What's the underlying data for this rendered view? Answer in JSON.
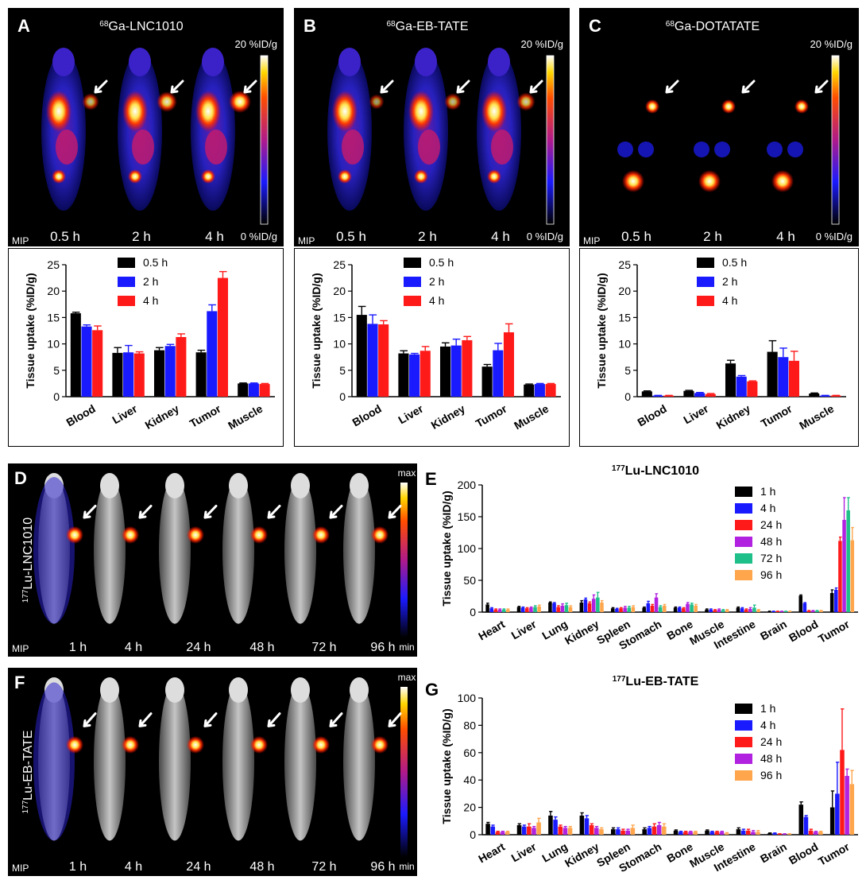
{
  "colors": {
    "t0_5h": "#000000",
    "t1h": "#000000",
    "t2h": "#1a1aff",
    "t4h": "#ff1a1a",
    "t24h": "#ff1a1a",
    "t48h": "#b021e0",
    "t72h": "#1fbf8a",
    "t96h": "#ffa64d",
    "t4h_blue": "#1a1aff"
  },
  "image_panels": [
    {
      "letter": "A",
      "probe_mass": "68",
      "probe_name": "Ga-LNC1010",
      "scale_top": "20 %ID/g",
      "scale_bottom": "0 %ID/g",
      "mip": "MIP",
      "times": [
        "0.5 h",
        "2 h",
        "4 h"
      ],
      "tumor_intensity": [
        0.45,
        0.8,
        1.0
      ]
    },
    {
      "letter": "B",
      "probe_mass": "68",
      "probe_name": "Ga-EB-TATE",
      "scale_top": "20 %ID/g",
      "scale_bottom": "0 %ID/g",
      "mip": "MIP",
      "times": [
        "0.5 h",
        "2 h",
        "4 h"
      ],
      "tumor_intensity": [
        0.25,
        0.45,
        0.6
      ]
    },
    {
      "letter": "C",
      "probe_mass": "68",
      "probe_name": "Ga-DOTATATE",
      "scale_top": "20 %ID/g",
      "scale_bottom": "0 %ID/g",
      "mip": "MIP",
      "times": [
        "0.5 h",
        "2 h",
        "4 h"
      ],
      "tumor_intensity": [
        0.5,
        0.5,
        0.5
      ]
    },
    {
      "letter": "D",
      "probe_mass": "177",
      "probe_name": "Lu-LNC1010",
      "scale_top": "max",
      "scale_bottom": "min",
      "mip": "MIP",
      "times": [
        "1 h",
        "4 h",
        "24 h",
        "48 h",
        "72 h",
        "96 h"
      ]
    },
    {
      "letter": "F",
      "probe_mass": "177",
      "probe_name": "Lu-EB-TATE",
      "scale_top": "max",
      "scale_bottom": "min",
      "mip": "MIP",
      "times": [
        "1 h",
        "4 h",
        "24 h",
        "48 h",
        "72 h",
        "96 h"
      ]
    }
  ],
  "chart_data": [
    {
      "panel": "A",
      "type": "bar",
      "categories": [
        "Blood",
        "Liver",
        "Kidney",
        "Tumor",
        "Muscle"
      ],
      "ylabel": "Tissue uptake (%ID/g)",
      "ylim": [
        0,
        25
      ],
      "yticks": [
        0,
        5,
        10,
        15,
        20,
        25
      ],
      "legend": "top-center",
      "series": [
        {
          "name": "0.5 h",
          "color": "#000000",
          "values": [
            15.8,
            8.3,
            8.8,
            8.4,
            2.5
          ],
          "errors": [
            0.2,
            1.0,
            0.5,
            0.4,
            0.1
          ]
        },
        {
          "name": "2 h",
          "color": "#1a1aff",
          "values": [
            13.3,
            8.4,
            9.6,
            16.2,
            2.5
          ],
          "errors": [
            0.3,
            1.3,
            0.3,
            1.2,
            0.1
          ]
        },
        {
          "name": "4 h",
          "color": "#ff1a1a",
          "values": [
            12.6,
            8.2,
            11.3,
            22.5,
            2.4
          ],
          "errors": [
            0.8,
            0.3,
            0.6,
            1.2,
            0.1
          ]
        }
      ]
    },
    {
      "panel": "B",
      "type": "bar",
      "categories": [
        "Blood",
        "Liver",
        "Kidney",
        "Tumor",
        "Muscle"
      ],
      "ylabel": "Tissue uptake (%ID/g)",
      "ylim": [
        0,
        25
      ],
      "yticks": [
        0,
        5,
        10,
        15,
        20,
        25
      ],
      "legend": "top-center",
      "series": [
        {
          "name": "0.5 h",
          "color": "#000000",
          "values": [
            15.5,
            8.2,
            9.5,
            5.7,
            2.3
          ],
          "errors": [
            1.6,
            0.5,
            0.7,
            0.4,
            0.1
          ]
        },
        {
          "name": "2 h",
          "color": "#1a1aff",
          "values": [
            13.8,
            8.0,
            9.7,
            8.8,
            2.4
          ],
          "errors": [
            1.7,
            0.2,
            1.2,
            1.3,
            0.1
          ]
        },
        {
          "name": "4 h",
          "color": "#ff1a1a",
          "values": [
            13.7,
            8.7,
            10.7,
            12.2,
            2.4
          ],
          "errors": [
            0.7,
            0.8,
            0.7,
            1.6,
            0.1
          ]
        }
      ]
    },
    {
      "panel": "C",
      "type": "bar",
      "categories": [
        "Blood",
        "Liver",
        "Kidney",
        "Tumor",
        "Muscle"
      ],
      "ylabel": "Tissue uptake (%ID/g)",
      "ylim": [
        0,
        25
      ],
      "yticks": [
        0,
        5,
        10,
        15,
        20,
        25
      ],
      "legend": "top-center",
      "series": [
        {
          "name": "0.5 h",
          "color": "#000000",
          "values": [
            1.0,
            1.1,
            6.3,
            8.5,
            0.6
          ],
          "errors": [
            0.1,
            0.1,
            0.6,
            2.1,
            0.1
          ]
        },
        {
          "name": "2 h",
          "color": "#1a1aff",
          "values": [
            0.2,
            0.7,
            3.8,
            7.5,
            0.2
          ],
          "errors": [
            0.05,
            0.1,
            0.2,
            1.7,
            0.05
          ]
        },
        {
          "name": "4 h",
          "color": "#ff1a1a",
          "values": [
            0.2,
            0.5,
            2.9,
            6.8,
            0.2
          ],
          "errors": [
            0.05,
            0.1,
            0.1,
            1.8,
            0.05
          ]
        }
      ]
    },
    {
      "panel": "E",
      "type": "bar",
      "title_mass": "177",
      "title_name": "Lu-LNC1010",
      "categories": [
        "Heart",
        "Liver",
        "Lung",
        "Kidney",
        "Spleen",
        "Stomach",
        "Bone",
        "Muscle",
        "Intestine",
        "Brain",
        "Blood",
        "Tumor"
      ],
      "ylabel": "Tissue uptake (%ID/g)",
      "ylim": [
        0,
        200
      ],
      "yticks": [
        0,
        50,
        100,
        150,
        200
      ],
      "legend": "top-right",
      "series": [
        {
          "name": "1 h",
          "color": "#000000",
          "values": [
            12,
            8,
            15,
            15,
            6,
            7,
            7,
            4,
            7,
            1,
            26,
            30
          ],
          "errors": [
            2,
            1,
            1,
            3,
            1,
            1,
            1,
            1,
            1,
            0.5,
            1,
            5
          ]
        },
        {
          "name": "4 h",
          "color": "#1a1aff",
          "values": [
            6,
            7,
            14,
            20,
            5,
            14,
            7,
            4,
            6,
            1,
            14,
            35
          ],
          "errors": [
            1,
            1,
            1,
            2,
            1,
            3,
            1,
            1,
            1,
            0.5,
            1,
            3
          ]
        },
        {
          "name": "24 h",
          "color": "#ff1a1a",
          "values": [
            4,
            6,
            8,
            14,
            6,
            10,
            6,
            3,
            4,
            1,
            2,
            112
          ],
          "errors": [
            1,
            1,
            2,
            2,
            1,
            2,
            1,
            1,
            1,
            0.5,
            0.5,
            6
          ]
        },
        {
          "name": "48 h",
          "color": "#b021e0",
          "values": [
            4,
            7,
            10,
            21,
            7,
            23,
            13,
            4,
            5,
            1,
            2,
            145
          ],
          "errors": [
            1,
            1,
            3,
            6,
            2,
            6,
            2,
            1,
            2,
            0.5,
            0.5,
            35
          ]
        },
        {
          "name": "72 h",
          "color": "#1fbf8a",
          "values": [
            4,
            8,
            11,
            23,
            7,
            8,
            12,
            3,
            7,
            1,
            2,
            160
          ],
          "errors": [
            1,
            2,
            3,
            8,
            2,
            2,
            2,
            1,
            4,
            0.5,
            0.5,
            20
          ]
        },
        {
          "name": "96 h",
          "color": "#ffa64d",
          "values": [
            4,
            9,
            8,
            15,
            8,
            10,
            10,
            3,
            3,
            1,
            2,
            113
          ],
          "errors": [
            1,
            2,
            2,
            3,
            2,
            2,
            2,
            1,
            1,
            0.5,
            0.5,
            20
          ]
        }
      ]
    },
    {
      "panel": "G",
      "type": "bar",
      "title_mass": "177",
      "title_name": "Lu-EB-TATE",
      "categories": [
        "Heart",
        "Liver",
        "Lung",
        "Kidney",
        "Spleen",
        "Stomach",
        "Bone",
        "Muscle",
        "Intestine",
        "Brain",
        "Blood",
        "Tumor"
      ],
      "ylabel": "Tissue uptake (%ID/g)",
      "ylim": [
        0,
        100
      ],
      "yticks": [
        0,
        20,
        40,
        60,
        80,
        100
      ],
      "legend": "top-right",
      "series": [
        {
          "name": "1 h",
          "color": "#000000",
          "values": [
            8,
            7,
            14,
            14,
            4,
            4,
            3,
            3,
            4,
            1,
            22,
            20
          ],
          "errors": [
            1,
            1,
            3,
            2,
            1,
            1,
            0.5,
            0.5,
            1,
            0.3,
            2,
            12
          ]
        },
        {
          "name": "4 h",
          "color": "#1a1aff",
          "values": [
            6,
            6,
            11,
            12,
            4,
            5,
            2,
            2,
            3,
            1,
            13,
            30
          ],
          "errors": [
            1,
            1,
            2,
            2,
            1,
            1,
            0.5,
            0.5,
            1,
            0.3,
            1,
            23
          ]
        },
        {
          "name": "24 h",
          "color": "#ff1a1a",
          "values": [
            2,
            6,
            6,
            7,
            3,
            6,
            2,
            2,
            3,
            0.5,
            3,
            62
          ],
          "errors": [
            0.5,
            2,
            1,
            1,
            1,
            2,
            0.5,
            0.5,
            1,
            0.2,
            1,
            30
          ]
        },
        {
          "name": "48 h",
          "color": "#b021e0",
          "values": [
            2,
            5,
            5,
            5,
            3,
            7,
            2,
            2,
            2,
            0.5,
            2,
            43
          ],
          "errors": [
            0.5,
            1,
            1,
            1,
            1,
            2,
            0.5,
            0.5,
            1,
            0.2,
            0.5,
            5
          ]
        },
        {
          "name": "96 h",
          "color": "#ffa64d",
          "values": [
            2,
            9,
            5,
            4,
            5,
            6,
            2,
            1,
            2,
            0.5,
            2,
            37
          ],
          "errors": [
            0.5,
            3,
            1,
            1,
            2,
            2,
            0.5,
            0.5,
            1,
            0.2,
            0.5,
            10
          ]
        }
      ]
    }
  ]
}
